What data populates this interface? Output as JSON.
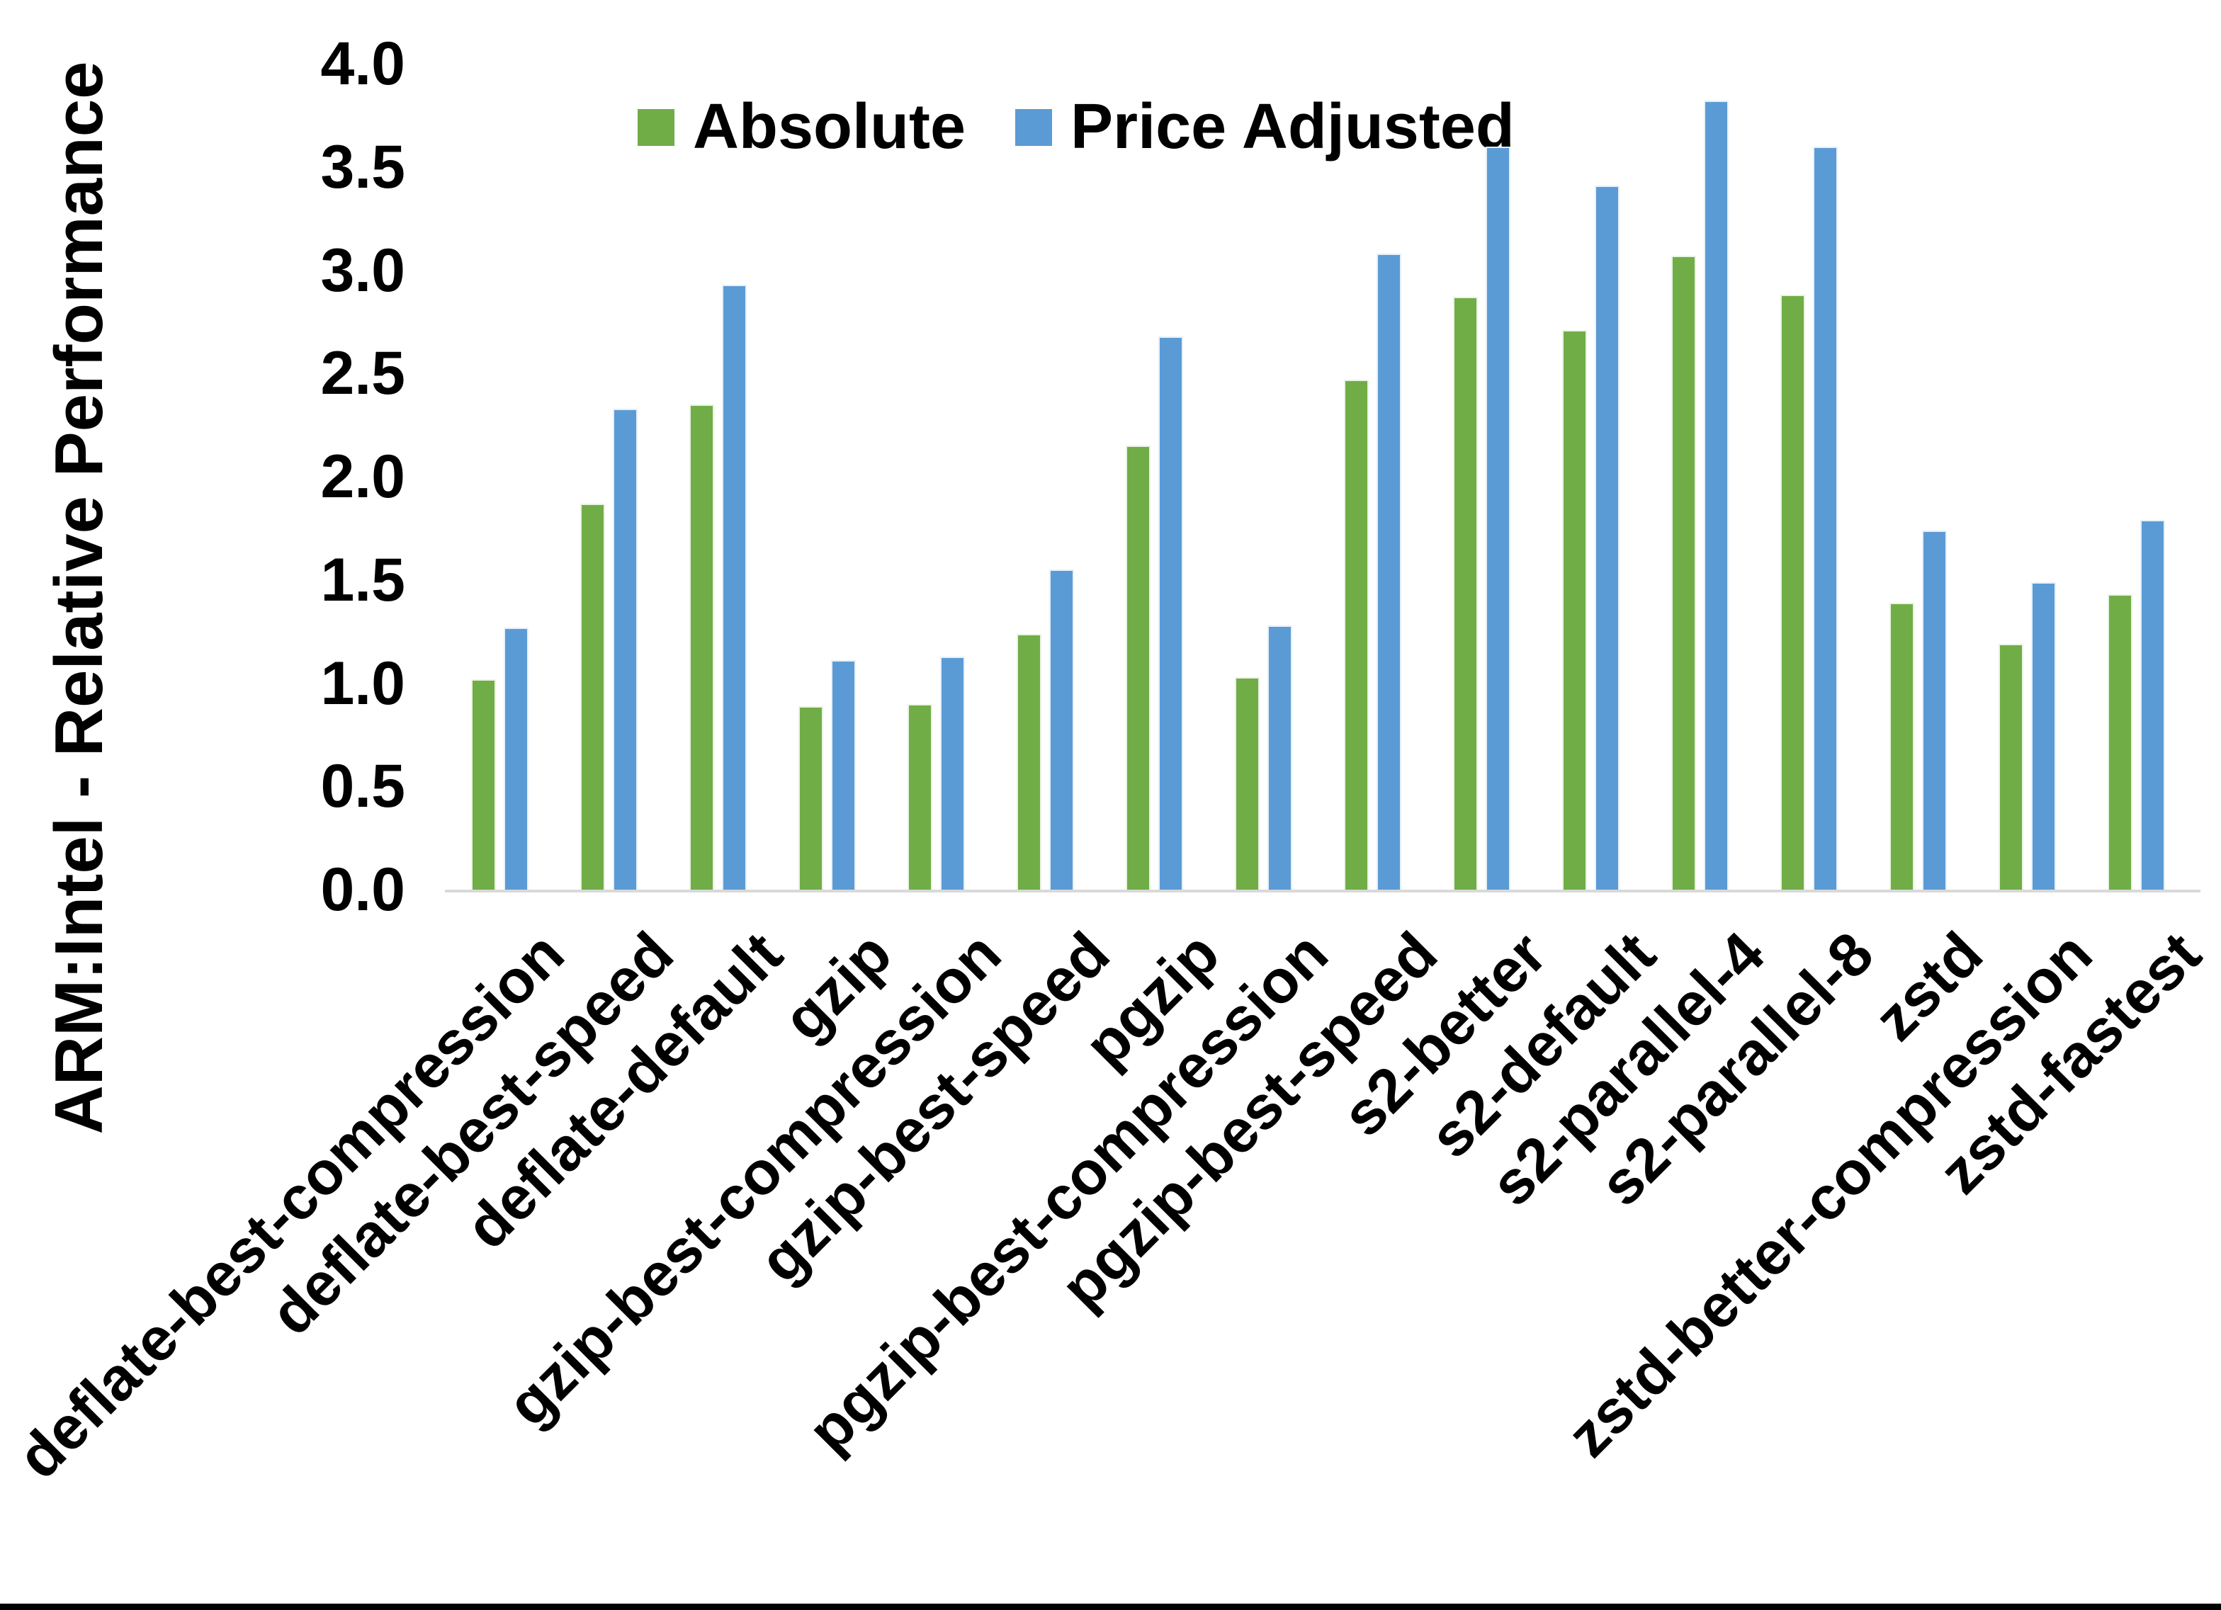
{
  "page": {
    "background": "#ffffff",
    "bottom_border_color": "#000000",
    "axis_line_color": "#d9d9d9"
  },
  "chart_data": {
    "type": "bar",
    "title": "",
    "xlabel": "",
    "ylabel": "ARM:Intel - Relative Performance",
    "ylim": [
      0.0,
      4.0
    ],
    "ytick_step": 0.5,
    "ytick_labels": [
      "0.0",
      "0.5",
      "1.0",
      "1.5",
      "2.0",
      "2.5",
      "3.0",
      "3.5",
      "4.0"
    ],
    "grid": false,
    "legend_position": "top-center",
    "categories": [
      "deflate-best-compression",
      "deflate-best-speed",
      "deflate-default",
      "gzip",
      "gzip-best-compression",
      "gzip-best-speed",
      "pgzip",
      "pgzip-best-compression",
      "pgzip-best-speed",
      "s2-better",
      "s2-default",
      "s2-parallel-4",
      "s2-parallel-8",
      "zstd",
      "zstd-better-compression",
      "zstd-fastest"
    ],
    "series": [
      {
        "name": "Absolute",
        "color": "#70AD47",
        "values": [
          1.02,
          1.87,
          2.35,
          0.89,
          0.9,
          1.24,
          2.15,
          1.03,
          2.47,
          2.87,
          2.71,
          3.07,
          2.88,
          1.39,
          1.19,
          1.43
        ]
      },
      {
        "name": "Price Adjusted",
        "color": "#5B9BD5",
        "values": [
          1.27,
          2.33,
          2.93,
          1.11,
          1.13,
          1.55,
          2.68,
          1.28,
          3.08,
          3.6,
          3.41,
          3.82,
          3.6,
          1.74,
          1.49,
          1.79
        ]
      }
    ]
  }
}
